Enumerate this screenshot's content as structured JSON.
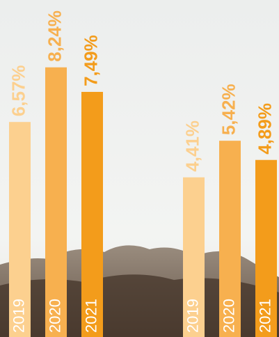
{
  "chart_data": [
    {
      "type": "bar",
      "categories": [
        "2019",
        "2020",
        "2021"
      ],
      "values": [
        6.57,
        8.24,
        7.49
      ],
      "value_labels": [
        "6,57%",
        "8,24%",
        "7,49%"
      ],
      "colors": [
        "#fcd08f",
        "#f7b04f",
        "#f39c1b"
      ]
    },
    {
      "type": "bar",
      "categories": [
        "2019",
        "2020",
        "2021"
      ],
      "values": [
        4.41,
        5.42,
        4.89
      ],
      "value_labels": [
        "4,41%",
        "5,42%",
        "4,89%"
      ],
      "colors": [
        "#fcd08f",
        "#f7b04f",
        "#f39c1b"
      ]
    }
  ]
}
